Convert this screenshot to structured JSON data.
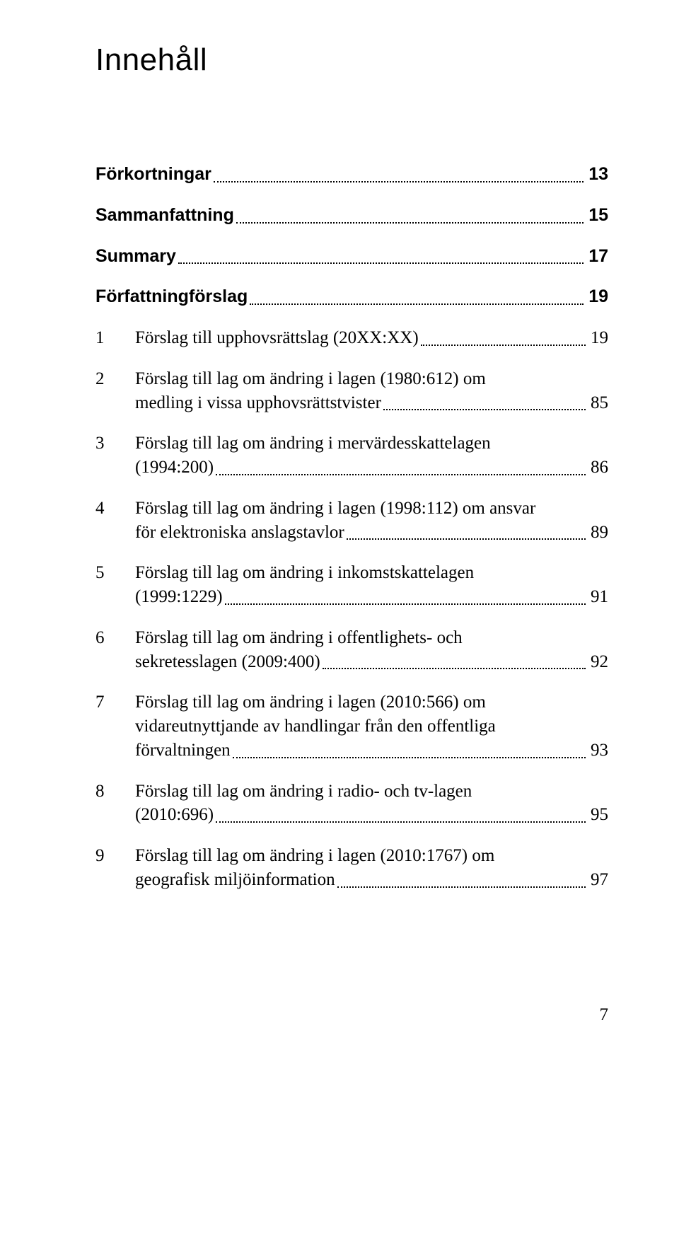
{
  "title": "Innehåll",
  "entries": [
    {
      "type": "bold",
      "label": "Förkortningar",
      "page": "13"
    },
    {
      "type": "bold",
      "label": "Sammanfattning",
      "page": "15"
    },
    {
      "type": "bold",
      "label": "Summary",
      "page": "17"
    },
    {
      "type": "bold",
      "label": "Författningförslag",
      "page": "19"
    },
    {
      "type": "num-single",
      "num": "1",
      "label": "Förslag till upphovsrättslag (20XX:XX)",
      "page": "19"
    },
    {
      "type": "num-multi",
      "num": "2",
      "lines": [
        "Förslag till lag om ändring i lagen (1980:612) om",
        "medling i vissa upphovsrättstvister"
      ],
      "page": "85"
    },
    {
      "type": "num-multi",
      "num": "3",
      "lines": [
        "Förslag till lag om ändring i mervärdesskattelagen",
        "(1994:200)"
      ],
      "page": "86"
    },
    {
      "type": "num-multi",
      "num": "4",
      "lines": [
        "Förslag till lag om ändring i lagen (1998:112) om ansvar",
        "för elektroniska anslagstavlor"
      ],
      "page": "89"
    },
    {
      "type": "num-multi",
      "num": "5",
      "lines": [
        "Förslag till lag om ändring i inkomstskattelagen",
        "(1999:1229)"
      ],
      "page": "91"
    },
    {
      "type": "num-multi",
      "num": "6",
      "lines": [
        "Förslag till lag om ändring i offentlighets- och",
        "sekretesslagen (2009:400)"
      ],
      "page": "92"
    },
    {
      "type": "num-multi",
      "num": "7",
      "lines": [
        "Förslag till lag om ändring i lagen (2010:566) om",
        "vidareutnyttjande av handlingar från den offentliga",
        "förvaltningen"
      ],
      "page": "93"
    },
    {
      "type": "num-multi",
      "num": "8",
      "lines": [
        "Förslag till lag om ändring i radio- och tv-lagen",
        "(2010:696)"
      ],
      "page": "95"
    },
    {
      "type": "num-multi",
      "num": "9",
      "lines": [
        "Förslag till lag om ändring i lagen (2010:1767) om",
        "geografisk miljöinformation"
      ],
      "page": "97"
    }
  ],
  "footer_page": "7"
}
